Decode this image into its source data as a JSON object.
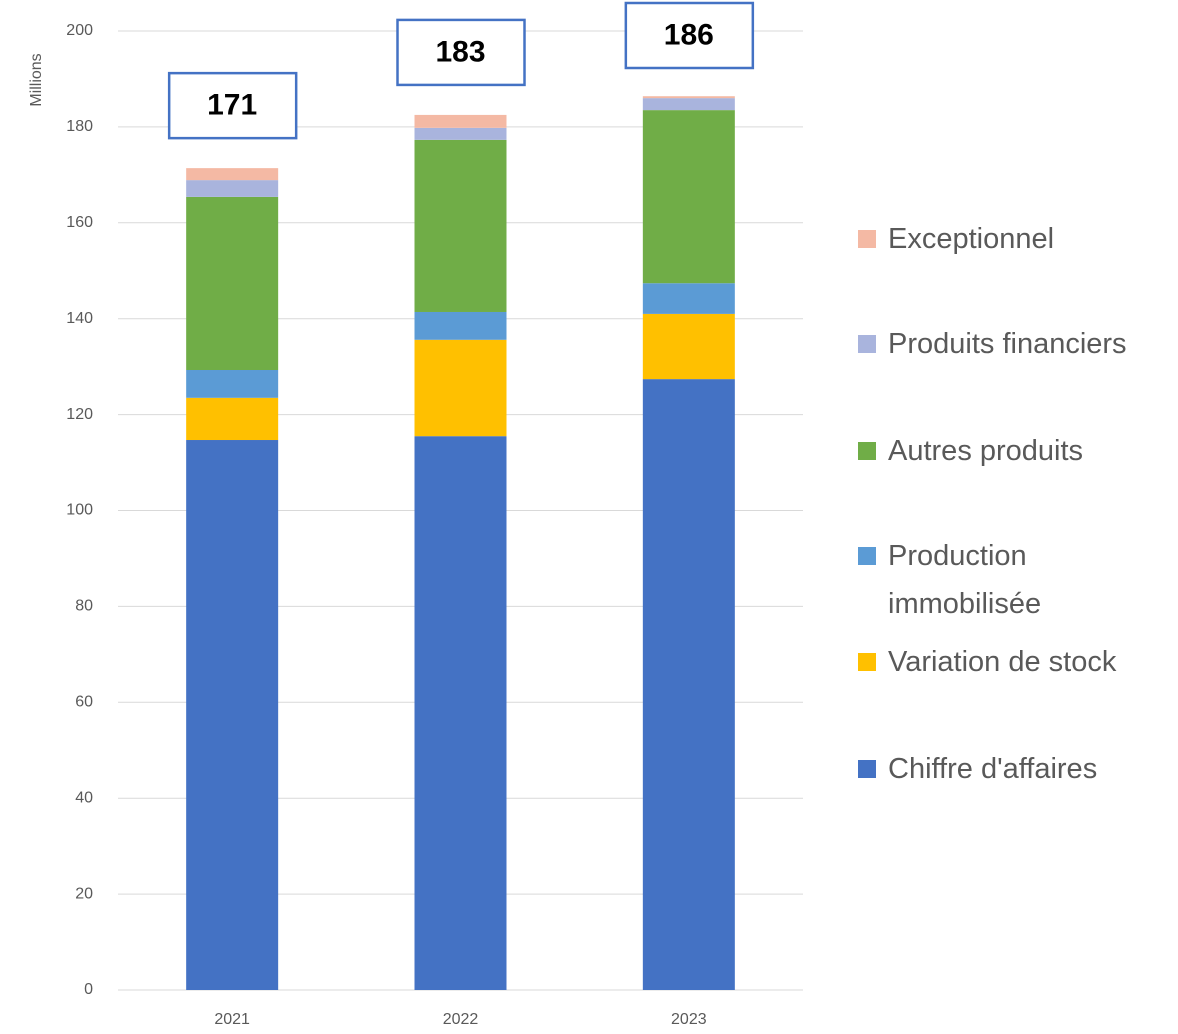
{
  "chart_data": {
    "type": "stacked_bar",
    "y_axis_label": "Millions",
    "categories": [
      "2021",
      "2022",
      "2023"
    ],
    "series": [
      {
        "name": "Chiffre d'affaires",
        "color": "#4472c4",
        "values": [
          114.7,
          115.5,
          127.4
        ]
      },
      {
        "name": "Variation de stock",
        "color": "#ffc000",
        "values": [
          8.8,
          20.1,
          13.6
        ]
      },
      {
        "name": "Production immobilisée",
        "color": "#5b9bd5",
        "values": [
          5.8,
          5.8,
          6.4
        ]
      },
      {
        "name": "Autres produits",
        "color": "#70ad47",
        "values": [
          36.1,
          35.9,
          36.1
        ]
      },
      {
        "name": "Produits financiers",
        "color": "#a9b4dd",
        "values": [
          3.5,
          2.5,
          2.5
        ]
      },
      {
        "name": "Exceptionnel",
        "color": "#f4b9a4",
        "values": [
          2.5,
          2.7,
          0.4
        ]
      }
    ],
    "total_labels": [
      "171",
      "183",
      "186"
    ],
    "ylim": [
      0,
      200
    ],
    "yticks": [
      0,
      20,
      40,
      60,
      80,
      100,
      120,
      140,
      160,
      180,
      200
    ],
    "grid": true,
    "legend": "right"
  }
}
